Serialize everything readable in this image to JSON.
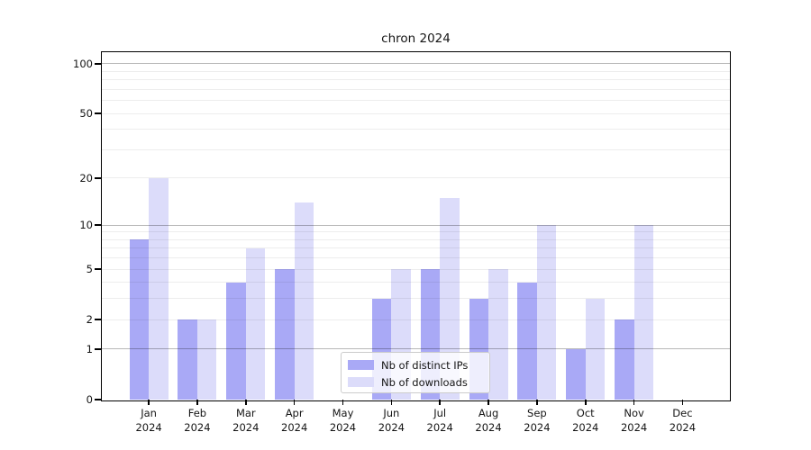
{
  "title": "chron 2024",
  "colors": {
    "distinct_ips_bar": "#a9a9f6",
    "downloads_bar": "#dcdcfa",
    "major_gridline": "rgba(0,0,0,0.28)",
    "minor_gridline": "rgba(0,0,0,0.07)",
    "legend_border": "#cccccc"
  },
  "legend": {
    "items": [
      {
        "label": "Nb of distinct IPs",
        "color": "#a9a9f6"
      },
      {
        "label": "Nb of downloads",
        "color": "#dcdcfa"
      }
    ]
  },
  "chart_data": {
    "type": "bar",
    "title": "chron 2024",
    "categories": [
      "Jan 2024",
      "Feb 2024",
      "Mar 2024",
      "Apr 2024",
      "May 2024",
      "Jun 2024",
      "Jul 2024",
      "Aug 2024",
      "Sep 2024",
      "Oct 2024",
      "Nov 2024",
      "Dec 2024"
    ],
    "series": [
      {
        "name": "Nb of distinct IPs",
        "color": "#a9a9f6",
        "values": [
          8,
          2,
          4,
          5,
          0,
          3,
          5,
          3,
          4,
          1,
          2,
          0
        ]
      },
      {
        "name": "Nb of downloads",
        "color": "#dcdcfa",
        "values": [
          20,
          2,
          7,
          14,
          0,
          5,
          15,
          5,
          10,
          3,
          10,
          0
        ]
      }
    ],
    "xlabel": "",
    "ylabel": "",
    "yscale": "log1p",
    "ylim": [
      0,
      118
    ],
    "ytick_values": [
      100,
      50,
      20,
      10,
      5,
      2,
      1,
      0
    ],
    "ytick_labels": [
      "100",
      "50",
      "20",
      "10",
      "5",
      "2",
      "1",
      "0"
    ],
    "major_gridlines": [
      1,
      10,
      100
    ],
    "minor_gridlines": [
      2,
      3,
      4,
      5,
      6,
      7,
      8,
      9,
      20,
      30,
      40,
      50,
      60,
      70,
      80,
      90
    ],
    "grid": true,
    "legend_position": "lower center"
  }
}
